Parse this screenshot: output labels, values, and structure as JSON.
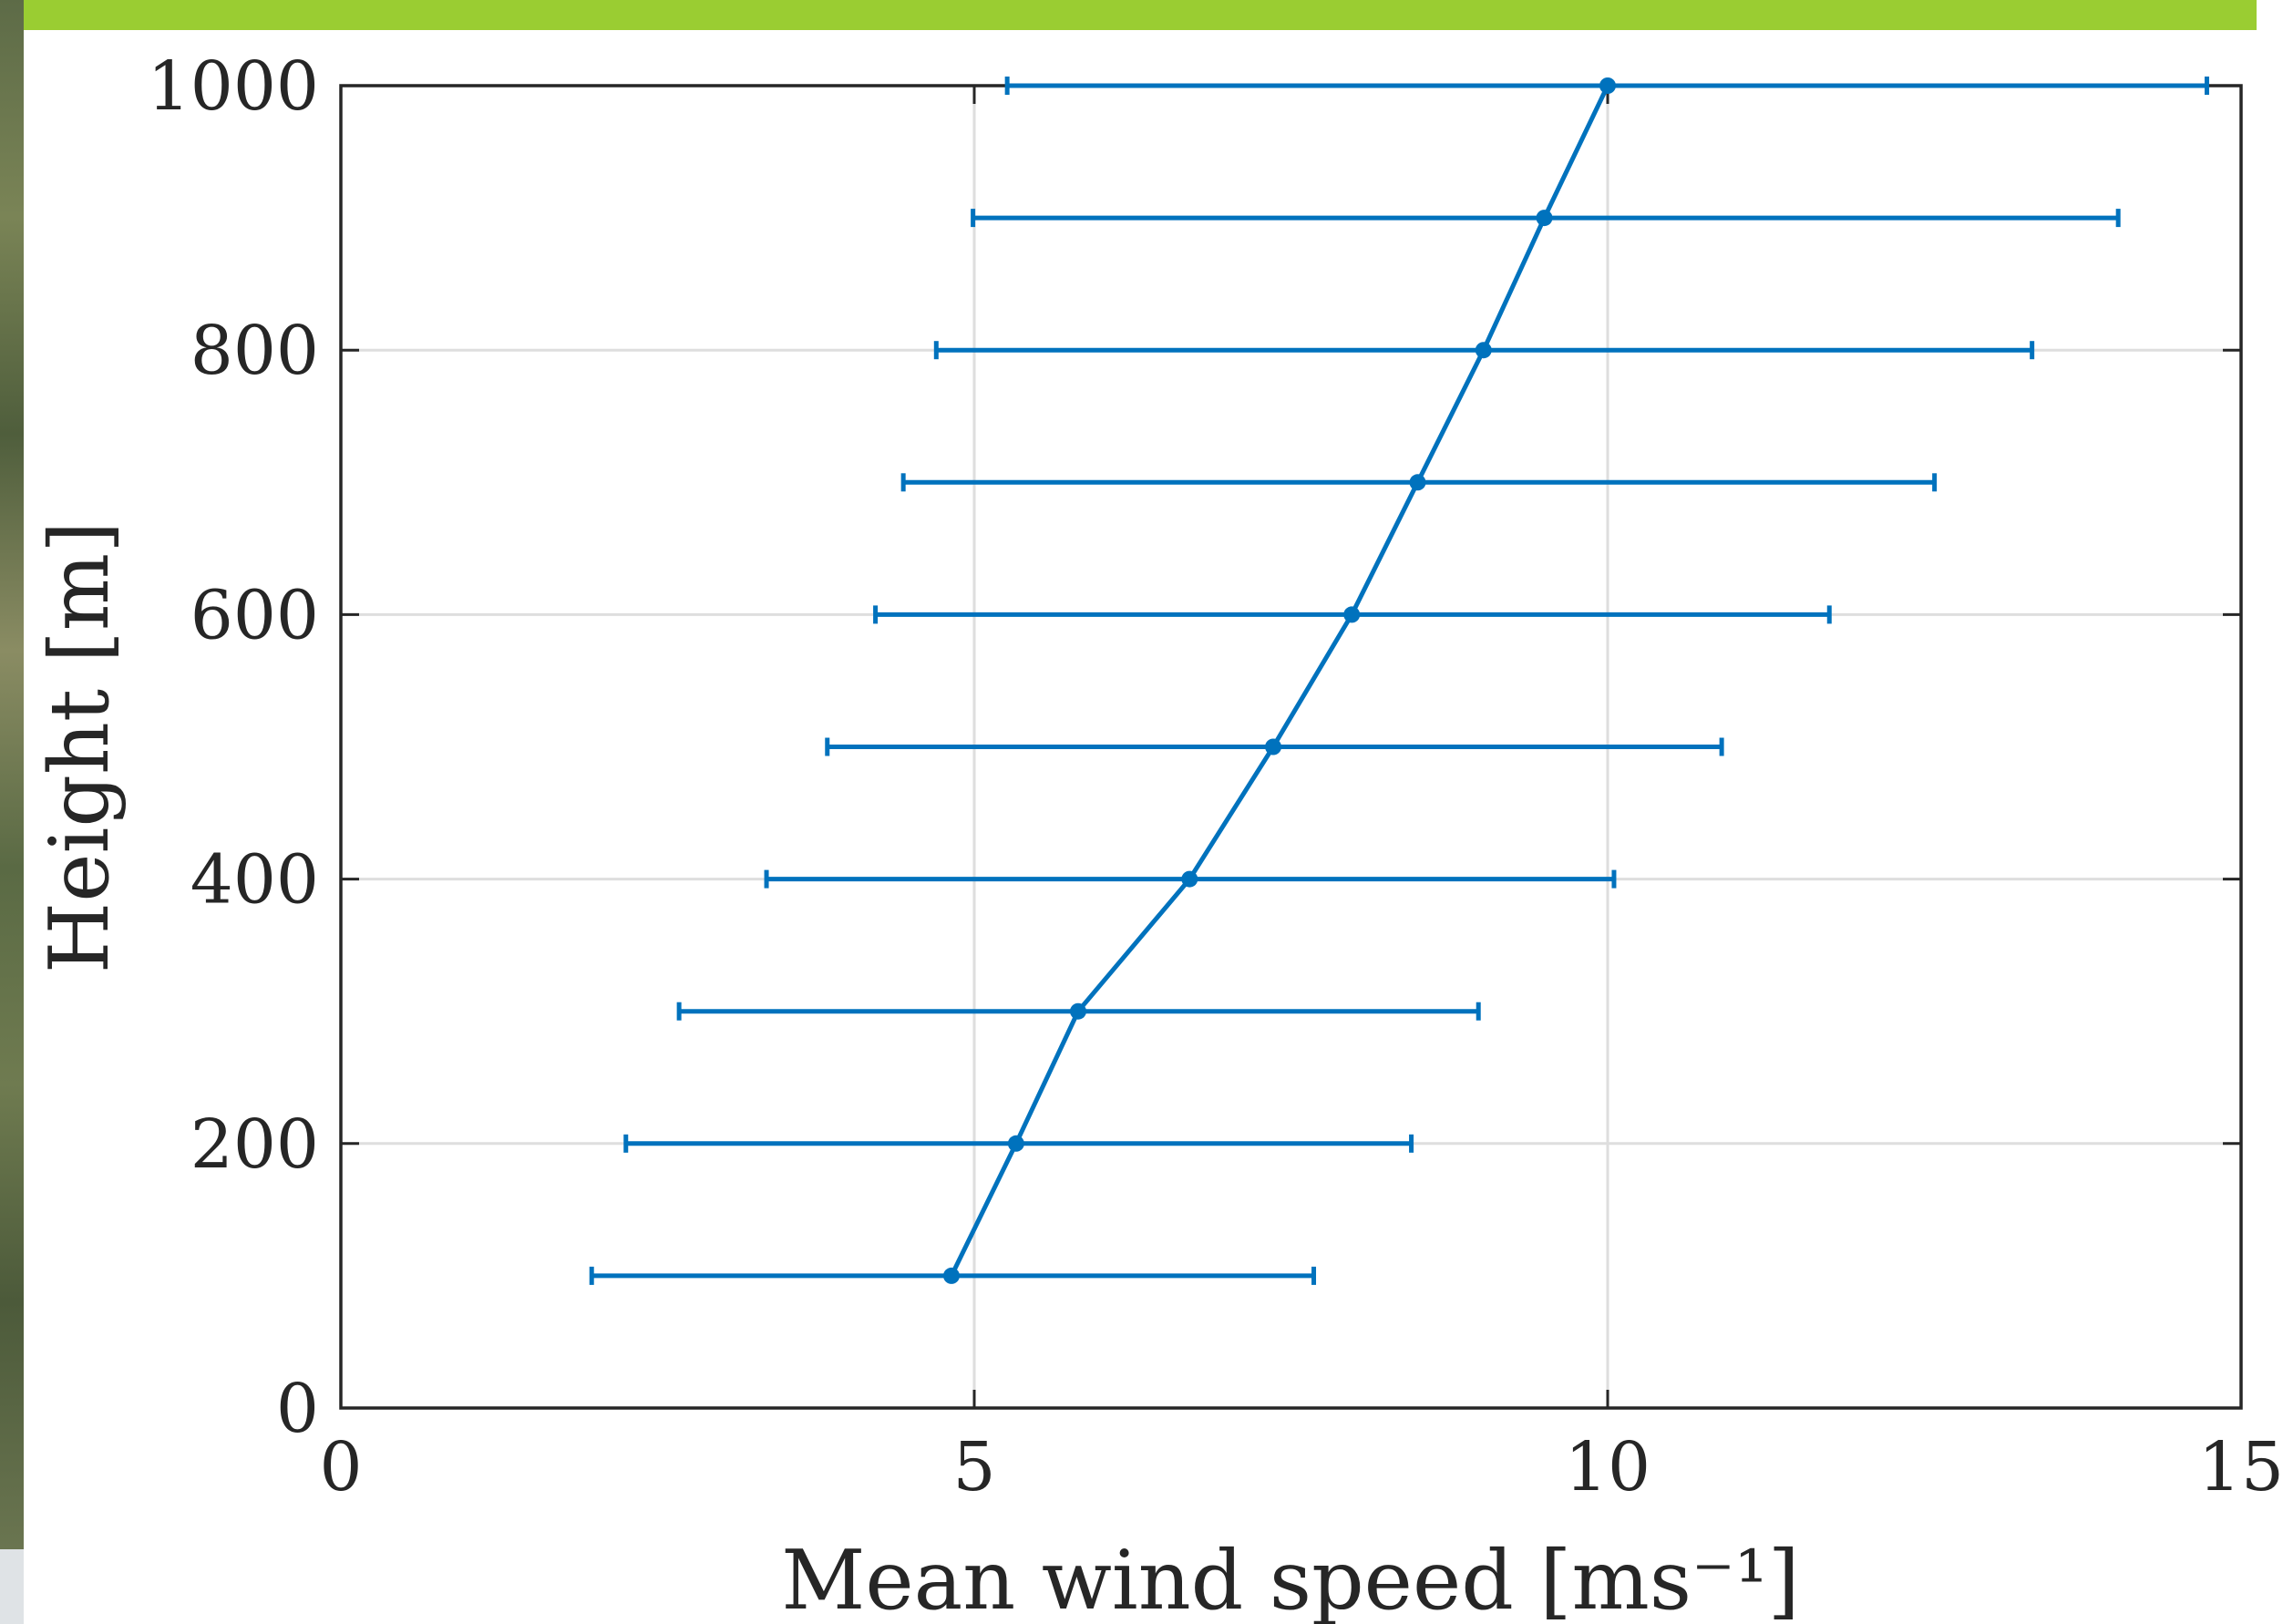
{
  "header": {
    "accent_color": "#9acd32"
  },
  "chart_data": {
    "type": "line",
    "title": "",
    "xlabel": "Mean wind speed [ms⁻¹]",
    "ylabel": "Height [m]",
    "xlim": [
      0,
      15
    ],
    "ylim": [
      0,
      1000
    ],
    "xticks": [
      0,
      5,
      10,
      15
    ],
    "yticks": [
      0,
      200,
      400,
      600,
      800,
      1000
    ],
    "xtick_labels": [
      "0",
      "5",
      "10",
      "15"
    ],
    "ytick_labels": [
      "0",
      "200",
      "400",
      "600",
      "800",
      "1000"
    ],
    "grid": true,
    "legend": "none",
    "series": [
      {
        "color": "#0072bd",
        "error_bars": "horizontal",
        "points": [
          {
            "y": 100,
            "x": 4.82,
            "xlow": 1.98,
            "xhigh": 7.68
          },
          {
            "y": 200,
            "x": 5.33,
            "xlow": 2.25,
            "xhigh": 8.45
          },
          {
            "y": 300,
            "x": 5.82,
            "xlow": 2.67,
            "xhigh": 8.98
          },
          {
            "y": 400,
            "x": 6.7,
            "xlow": 3.36,
            "xhigh": 10.05
          },
          {
            "y": 500,
            "x": 7.36,
            "xlow": 3.84,
            "xhigh": 10.9
          },
          {
            "y": 600,
            "x": 7.98,
            "xlow": 4.22,
            "xhigh": 11.75
          },
          {
            "y": 700,
            "x": 8.5,
            "xlow": 4.44,
            "xhigh": 12.58
          },
          {
            "y": 800,
            "x": 9.02,
            "xlow": 4.7,
            "xhigh": 13.35
          },
          {
            "y": 900,
            "x": 9.5,
            "xlow": 4.99,
            "xhigh": 14.03
          },
          {
            "y": 1000,
            "x": 10.0,
            "xlow": 5.26,
            "xhigh": 14.73
          }
        ]
      }
    ]
  }
}
